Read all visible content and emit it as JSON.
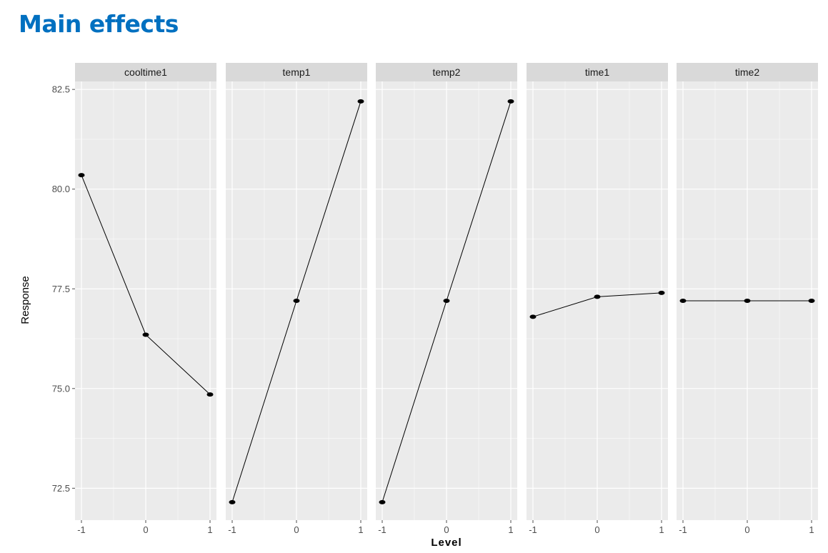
{
  "title": "Main effects",
  "chart_data": {
    "type": "line",
    "title": "Main effects",
    "xlabel": "Level",
    "ylabel": "Response",
    "x": [
      -1,
      0,
      1
    ],
    "x_tick_labels": [
      "-1",
      "0",
      "1"
    ],
    "ylim": [
      71.7,
      82.7
    ],
    "y_ticks": [
      72.5,
      75.0,
      77.5,
      80.0,
      82.5
    ],
    "y_tick_labels": [
      "72.5",
      "75.0",
      "77.5",
      "80.0",
      "82.5"
    ],
    "grid": true,
    "facets": [
      {
        "name": "cooltime1",
        "values": [
          80.35,
          76.35,
          74.85
        ]
      },
      {
        "name": "temp1",
        "values": [
          72.15,
          77.2,
          82.2
        ]
      },
      {
        "name": "temp2",
        "values": [
          72.15,
          77.2,
          82.2
        ]
      },
      {
        "name": "time1",
        "values": [
          76.8,
          77.3,
          77.4
        ]
      },
      {
        "name": "time2",
        "values": [
          77.2,
          77.2,
          77.2
        ]
      }
    ],
    "colors": {
      "panel_bg": "#EBEBEB",
      "strip_bg": "#D9D9D9",
      "grid": "#FFFFFF",
      "line": "#000000",
      "point": "#000000",
      "title": "#0070C0"
    }
  }
}
